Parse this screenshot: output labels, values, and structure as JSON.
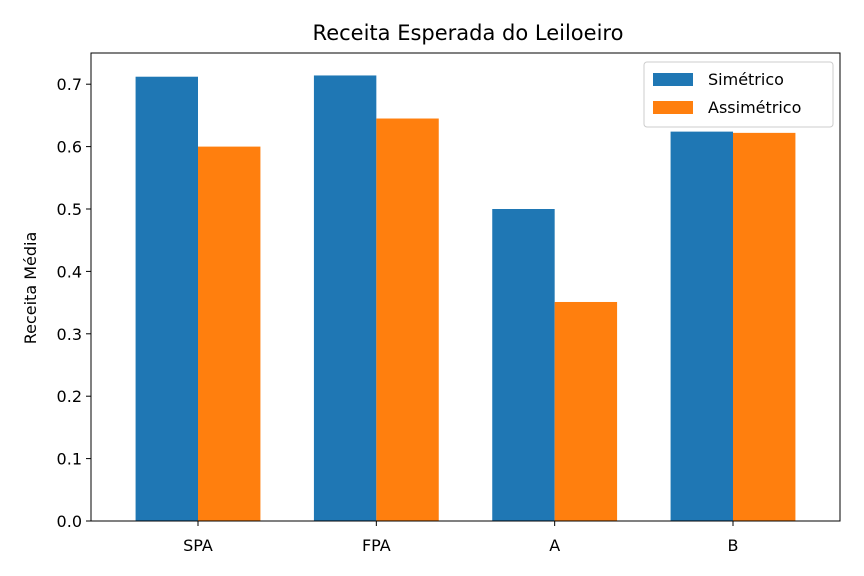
{
  "chart_data": {
    "type": "bar",
    "title": "Receita Esperada do Leiloeiro",
    "xlabel": "",
    "ylabel": "Receita Média",
    "categories": [
      "SPA",
      "FPA",
      "A",
      "B"
    ],
    "series": [
      {
        "name": "Simétrico",
        "color": "#1f77b4",
        "values": [
          0.712,
          0.714,
          0.5,
          0.624
        ]
      },
      {
        "name": "Assimétrico",
        "color": "#ff7f0e",
        "values": [
          0.6,
          0.645,
          0.351,
          0.622
        ]
      }
    ],
    "ylim": [
      0,
      0.75
    ],
    "yticks": [
      "0.0",
      "0.1",
      "0.2",
      "0.3",
      "0.4",
      "0.5",
      "0.6",
      "0.7"
    ],
    "grid": false,
    "legend_position": "top-right"
  }
}
